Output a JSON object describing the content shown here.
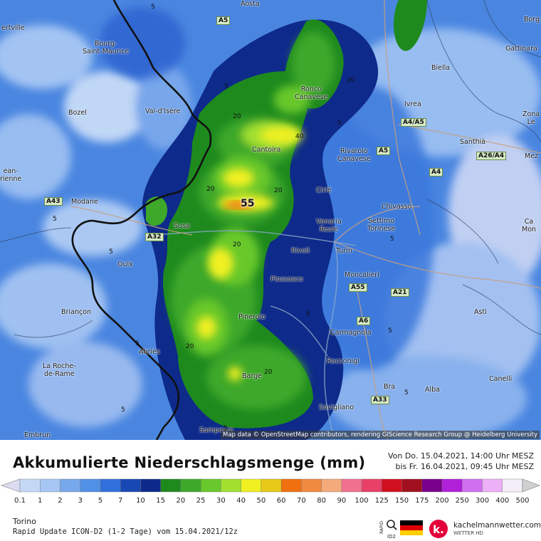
{
  "map": {
    "towns": [
      {
        "name": "Aosta",
        "label": "Aosta"
      },
      {
        "name": "Albertville",
        "label": "ertville"
      },
      {
        "name": "Bourg-Saint-Maurice",
        "label": "Bourg-\nSaint-Maurice"
      },
      {
        "name": "Bozel",
        "label": "Bozel"
      },
      {
        "name": "Val-d'Isere",
        "label": "Val-d'Isère"
      },
      {
        "name": "Modane",
        "label": "Modane"
      },
      {
        "name": "Saint-Jean-de-Maurienne",
        "label": "ean-\nrienne"
      },
      {
        "name": "Ronco Canavese",
        "label": "Ronco\nCanavese"
      },
      {
        "name": "Cantoira",
        "label": "Cantoira"
      },
      {
        "name": "Rivarolo Canavese",
        "label": "Rivarolo\nCanavese"
      },
      {
        "name": "Cirie",
        "label": "Ciriè"
      },
      {
        "name": "Ivrea",
        "label": "Ivrea"
      },
      {
        "name": "Biella",
        "label": "Biella"
      },
      {
        "name": "Gattinara",
        "label": "Gattinara"
      },
      {
        "name": "Borgo",
        "label": "Borg"
      },
      {
        "name": "Zona",
        "label": "Zona\nLe"
      },
      {
        "name": "Santhia",
        "label": "Santhià"
      },
      {
        "name": "Mesz",
        "label": "Mez"
      },
      {
        "name": "Chivasso",
        "label": "Chivasso"
      },
      {
        "name": "Casale",
        "label": "Ca\nMon"
      },
      {
        "name": "Susa",
        "label": "Susa"
      },
      {
        "name": "Venaria Reale",
        "label": "Venaria\nReale"
      },
      {
        "name": "Settimo Torinese",
        "label": "Settimo\nTorinese"
      },
      {
        "name": "Rivoli",
        "label": "Rivoli"
      },
      {
        "name": "Turin",
        "label": "Turin"
      },
      {
        "name": "Oulx",
        "label": "Oulx"
      },
      {
        "name": "Piossasco",
        "label": "Piossasco"
      },
      {
        "name": "Moncalieri",
        "label": "Moncalieri"
      },
      {
        "name": "Briancon",
        "label": "Briançon"
      },
      {
        "name": "Pinerolo",
        "label": "Pinerolo"
      },
      {
        "name": "Asti",
        "label": "Asti"
      },
      {
        "name": "Carmagnola",
        "label": "Carmagnola"
      },
      {
        "name": "Abries",
        "label": "Abriès"
      },
      {
        "name": "La Roche-de-Rame",
        "label": "La Roche-\nde-Rame"
      },
      {
        "name": "Racconigi",
        "label": "Racconigi"
      },
      {
        "name": "Canelli",
        "label": "Canelli"
      },
      {
        "name": "Barge",
        "label": "Barge"
      },
      {
        "name": "Bra",
        "label": "Bra"
      },
      {
        "name": "Alba",
        "label": "Alba"
      },
      {
        "name": "Savigliano",
        "label": "Savigliano"
      },
      {
        "name": "Embrun",
        "label": "Embrun"
      },
      {
        "name": "Sampeyre",
        "label": "Sampeyre"
      }
    ],
    "roads": [
      "A5",
      "A4/A5",
      "A5",
      "A26/A4",
      "A4",
      "A43",
      "A32",
      "A55",
      "A21",
      "A6",
      "A33"
    ],
    "contour_labels": [
      "5",
      "5",
      "20",
      "40",
      "20",
      "20",
      "55",
      "20",
      "20",
      "20",
      "5",
      "5",
      "5",
      "5",
      "5",
      "5",
      "5",
      "5",
      "5",
      "5",
      "5",
      "5",
      "5",
      "20",
      "20",
      "20",
      "5"
    ],
    "peak_value": "55",
    "attribution": "Map data © OpenStreetMap contributors, rendering GIScience Research Group @ Heidelberg University"
  },
  "legend": {
    "title": "Akkumulierte Niederschlagsmenge (mm)",
    "period_from": "Von Do. 15.04.2021, 14:00 Uhr MESZ",
    "period_to": "bis Fr. 16.04.2021, 09:45 Uhr MESZ",
    "scale_values": [
      "0.1",
      "1",
      "2",
      "3",
      "5",
      "7",
      "10",
      "15",
      "20",
      "25",
      "30",
      "40",
      "50",
      "60",
      "70",
      "80",
      "90",
      "100",
      "125",
      "150",
      "175",
      "200",
      "250",
      "300",
      "400",
      "500"
    ],
    "scale_colors": [
      "#dcdcf0",
      "#c4d8f6",
      "#a6c6f4",
      "#78a8ec",
      "#5090e6",
      "#3070da",
      "#1848b4",
      "#0e2a8a",
      "#1e8a1e",
      "#3ea82a",
      "#68c82c",
      "#a2e030",
      "#f0f020",
      "#e8c818",
      "#f07010",
      "#f08a40",
      "#f4aa7a",
      "#f07090",
      "#e84066",
      "#d01020",
      "#a0101e",
      "#78008a",
      "#b020d8",
      "#d070f0",
      "#ecb0f6",
      "#f4eef8",
      "#d0d0d0"
    ]
  },
  "footer": {
    "location": "Torino",
    "model_run": "Rapid Update ICON-D2 (1-2 Tage) vom 15.04.2021/12z",
    "brand": "kachelmannwetter.com",
    "brand_sub": "WETTER HD",
    "rapid_label": "RAPID",
    "rapid_sub": "ID2"
  }
}
